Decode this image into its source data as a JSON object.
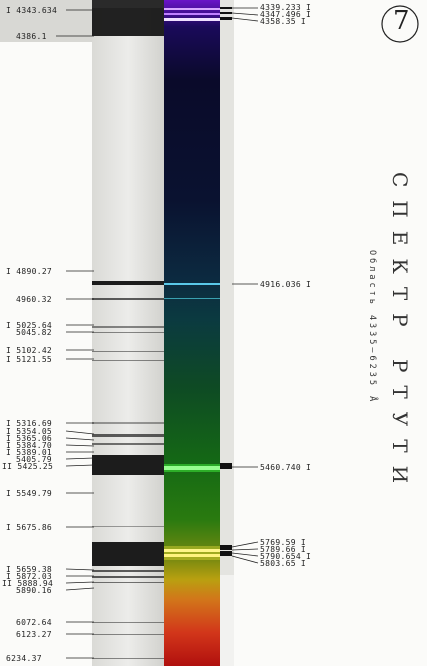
{
  "plate_number": "7",
  "title": "СПЕКТР РТУТИ",
  "subtitle": "Область 4335–6235 Å",
  "left_labels": [
    "I 4343.634",
    "4386.1",
    "I 4890.27",
    "4960.32",
    "I 5025.64",
    "5045.82",
    "I 5102.42",
    "I 5121.55",
    "I 5316.69",
    "I 5354.05",
    "I 5365.06",
    "I 5384.70",
    "I 5389.01",
    "5405.79",
    "II 5425.25",
    "I 5549.79",
    "I 5675.86",
    "I 5659.38",
    "I 5872.03",
    "II 5888.94",
    "5890.16",
    "6072.64",
    "6123.27",
    "6234.37"
  ],
  "right_labels": [
    "4339.233 I",
    "4347.496 I",
    "4358.35 I",
    "4916.036 I",
    "5460.740 I",
    "5769.59 I",
    "5789.66 I",
    "5790.654 I",
    "5803.65 I"
  ]
}
